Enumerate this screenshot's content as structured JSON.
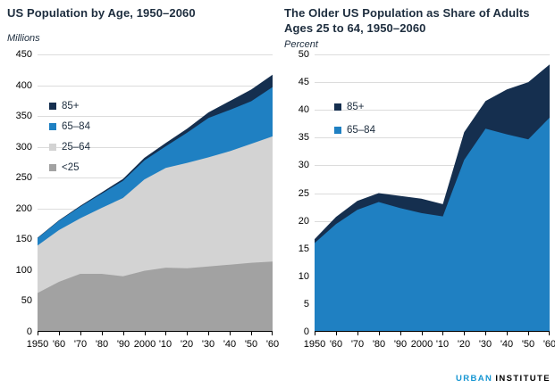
{
  "footer": {
    "brand_primary": "URBAN",
    "brand_secondary": "INSTITUTE",
    "brand_primary_color": "#1696d2",
    "brand_secondary_color": "#000000"
  },
  "colors": {
    "background": "#ffffff",
    "gridline": "#dcdcdc",
    "axis": "#000000",
    "title_text": "#1d2d3e",
    "tick_label_text": "#000000"
  },
  "chart_data": [
    {
      "type": "area",
      "stacked": true,
      "title": "US Population by Age, 1950–2060",
      "unit_label": "Millions",
      "ylim": [
        0,
        450
      ],
      "y_tick_step": 50,
      "y_tick_labels": [
        "450",
        "400",
        "350",
        "300",
        "250",
        "200",
        "150",
        "100",
        "50",
        "0"
      ],
      "x_years": [
        1950,
        1960,
        1970,
        1980,
        1990,
        2000,
        2010,
        2020,
        2030,
        2040,
        2050,
        2060
      ],
      "x_tick_labels": [
        "1950",
        "'60",
        "'70",
        "'80",
        "'90",
        "2000",
        "'10",
        "'20",
        "'30",
        "'40",
        "'50",
        "'60"
      ],
      "grid": true,
      "legend_position": "inside-top-left",
      "series": [
        {
          "name": "<25",
          "color": "#a2a2a2",
          "values": [
            63,
            81,
            94,
            94,
            90,
            99,
            104,
            103,
            106,
            109,
            112,
            114
          ]
        },
        {
          "name": "25–64",
          "color": "#d3d3d3",
          "values": [
            77,
            84,
            90,
            107,
            127,
            148,
            162,
            171,
            177,
            184,
            193,
            203
          ]
        },
        {
          "name": "65–84",
          "color": "#1f80c2",
          "values": [
            12,
            15,
            19,
            23,
            28,
            31,
            35,
            49,
            64,
            67,
            69,
            80
          ]
        },
        {
          "name": "85+",
          "color": "#152f4f",
          "values": [
            0.6,
            0.9,
            1.4,
            2.2,
            3.0,
            4.2,
            5.5,
            6.5,
            9.0,
            14.5,
            19.0,
            20.0
          ]
        }
      ]
    },
    {
      "type": "area",
      "stacked": true,
      "title": "The Older US Population as Share of Adults Ages 25 to 64, 1950–2060",
      "unit_label": "Percent",
      "ylim": [
        0,
        50
      ],
      "y_tick_step": 5,
      "y_tick_labels": [
        "50",
        "45",
        "40",
        "35",
        "30",
        "25",
        "20",
        "15",
        "10",
        "5",
        "0"
      ],
      "x_years": [
        1950,
        1960,
        1970,
        1980,
        1990,
        2000,
        2010,
        2020,
        2030,
        2040,
        2050,
        2060
      ],
      "x_tick_labels": [
        "1950",
        "'60",
        "'70",
        "'80",
        "'90",
        "2000",
        "'10",
        "'20",
        "'30",
        "'40",
        "'50",
        "'60"
      ],
      "grid": true,
      "legend_position": "inside-top-left",
      "series": [
        {
          "name": "65–84",
          "color": "#1f80c2",
          "values": [
            16.0,
            19.4,
            22.0,
            23.4,
            22.3,
            21.4,
            20.8,
            31.0,
            36.6,
            35.6,
            34.7,
            38.6
          ]
        },
        {
          "name": "85+",
          "color": "#152f4f",
          "values": [
            0.7,
            1.3,
            1.6,
            1.6,
            2.2,
            2.6,
            2.2,
            5.0,
            5.0,
            8.1,
            10.3,
            9.6
          ]
        }
      ]
    }
  ]
}
